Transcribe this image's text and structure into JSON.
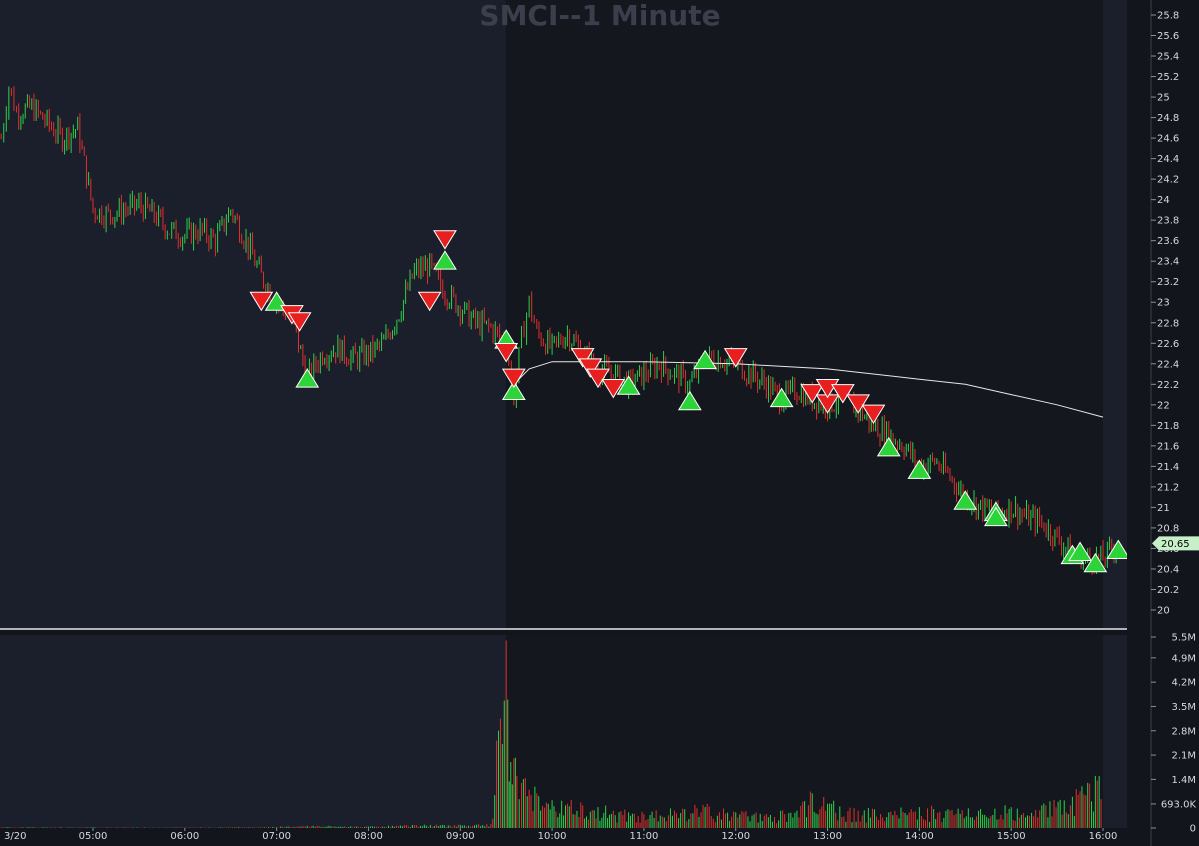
{
  "chart_data": [
    {
      "type": "candlestick",
      "title": "SMCI--1 Minute",
      "symbol": "SMCI",
      "interval": "1 Minute",
      "date_label": "3/20",
      "x_ticks": [
        "05:00",
        "06:00",
        "07:00",
        "08:00",
        "09:00",
        "10:00",
        "11:00",
        "12:00",
        "13:00",
        "14:00",
        "15:00",
        "16:00"
      ],
      "y_ticks": [
        "25.8",
        "25.6",
        "25.4",
        "25.2",
        "25",
        "24.8",
        "24.6",
        "24.4",
        "24.2",
        "24",
        "23.8",
        "23.6",
        "23.4",
        "23.2",
        "23",
        "22.8",
        "22.6",
        "22.4",
        "22.2",
        "22",
        "21.8",
        "21.6",
        "21.4",
        "21.2",
        "21",
        "20.8",
        "20.6",
        "20.4",
        "20.2",
        "20"
      ],
      "ylim": [
        19.9,
        26.0
      ],
      "last_price_label": "20.65",
      "last_price": 20.65,
      "price_path": [
        [
          "04:00",
          24.6
        ],
        [
          "04:05",
          25.1
        ],
        [
          "04:10",
          24.85
        ],
        [
          "04:20",
          24.9
        ],
        [
          "04:30",
          24.75
        ],
        [
          "04:40",
          24.6
        ],
        [
          "04:50",
          24.7
        ],
        [
          "05:00",
          23.9
        ],
        [
          "05:10",
          23.85
        ],
        [
          "05:20",
          23.9
        ],
        [
          "05:30",
          23.95
        ],
        [
          "05:40",
          23.85
        ],
        [
          "05:50",
          23.7
        ],
        [
          "06:00",
          23.65
        ],
        [
          "06:10",
          23.7
        ],
        [
          "06:20",
          23.6
        ],
        [
          "06:30",
          23.9
        ],
        [
          "06:40",
          23.6
        ],
        [
          "06:50",
          23.25
        ],
        [
          "07:00",
          23.0
        ],
        [
          "07:10",
          22.85
        ],
        [
          "07:20",
          22.25
        ],
        [
          "07:30",
          22.5
        ],
        [
          "07:40",
          22.55
        ],
        [
          "07:50",
          22.45
        ],
        [
          "08:00",
          22.5
        ],
        [
          "08:10",
          22.6
        ],
        [
          "08:20",
          22.9
        ],
        [
          "08:30",
          23.3
        ],
        [
          "08:40",
          23.35
        ],
        [
          "08:50",
          23.1
        ],
        [
          "09:00",
          22.95
        ],
        [
          "09:10",
          22.8
        ],
        [
          "09:20",
          22.75
        ],
        [
          "09:30",
          22.6
        ],
        [
          "09:35",
          22.1
        ],
        [
          "09:40",
          22.65
        ],
        [
          "09:45",
          23.0
        ],
        [
          "09:50",
          22.7
        ],
        [
          "10:00",
          22.55
        ],
        [
          "10:10",
          22.7
        ],
        [
          "10:20",
          22.5
        ],
        [
          "10:30",
          22.35
        ],
        [
          "10:40",
          22.3
        ],
        [
          "10:50",
          22.2
        ],
        [
          "11:00",
          22.3
        ],
        [
          "11:10",
          22.4
        ],
        [
          "11:20",
          22.3
        ],
        [
          "11:30",
          22.2
        ],
        [
          "11:40",
          22.45
        ],
        [
          "11:50",
          22.45
        ],
        [
          "12:00",
          22.4
        ],
        [
          "12:10",
          22.3
        ],
        [
          "12:20",
          22.2
        ],
        [
          "12:30",
          22.05
        ],
        [
          "12:40",
          22.15
        ],
        [
          "12:50",
          22.05
        ],
        [
          "13:00",
          22.0
        ],
        [
          "13:10",
          22.05
        ],
        [
          "13:20",
          21.95
        ],
        [
          "13:30",
          21.8
        ],
        [
          "13:40",
          21.7
        ],
        [
          "13:50",
          21.6
        ],
        [
          "14:00",
          21.4
        ],
        [
          "14:10",
          21.45
        ],
        [
          "14:20",
          21.3
        ],
        [
          "14:30",
          21.1
        ],
        [
          "14:40",
          21.0
        ],
        [
          "14:50",
          20.95
        ],
        [
          "15:00",
          21.0
        ],
        [
          "15:10",
          20.9
        ],
        [
          "15:20",
          20.85
        ],
        [
          "15:30",
          20.7
        ],
        [
          "15:40",
          20.55
        ],
        [
          "15:50",
          20.5
        ],
        [
          "16:00",
          20.5
        ],
        [
          "16:10",
          20.65
        ]
      ],
      "moving_average": [
        [
          "09:35",
          22.2
        ],
        [
          "09:45",
          22.35
        ],
        [
          "10:00",
          22.42
        ],
        [
          "11:00",
          22.42
        ],
        [
          "12:00",
          22.4
        ],
        [
          "13:00",
          22.35
        ],
        [
          "14:00",
          22.25
        ],
        [
          "14:30",
          22.2
        ],
        [
          "15:00",
          22.1
        ],
        [
          "15:30",
          22.0
        ],
        [
          "16:00",
          21.88
        ]
      ],
      "buy_signals": [
        [
          "07:00",
          23.02
        ],
        [
          "07:20",
          22.27
        ],
        [
          "08:50",
          23.42
        ],
        [
          "09:30",
          22.65
        ],
        [
          "09:35",
          22.15
        ],
        [
          "10:50",
          22.2
        ],
        [
          "11:30",
          22.05
        ],
        [
          "11:40",
          22.45
        ],
        [
          "12:30",
          22.08
        ],
        [
          "13:40",
          21.6
        ],
        [
          "14:00",
          21.38
        ],
        [
          "14:30",
          21.08
        ],
        [
          "14:50",
          20.97
        ],
        [
          "14:50",
          20.92
        ],
        [
          "15:40",
          20.55
        ],
        [
          "15:45",
          20.58
        ],
        [
          "15:55",
          20.47
        ],
        [
          "16:10",
          20.6
        ]
      ],
      "sell_signals": [
        [
          "06:50",
          23.0
        ],
        [
          "07:10",
          22.87
        ],
        [
          "07:15",
          22.8
        ],
        [
          "08:40",
          23.0
        ],
        [
          "08:50",
          23.6
        ],
        [
          "09:30",
          22.5
        ],
        [
          "09:35",
          22.25
        ],
        [
          "10:20",
          22.45
        ],
        [
          "10:25",
          22.35
        ],
        [
          "10:30",
          22.25
        ],
        [
          "10:40",
          22.15
        ],
        [
          "12:00",
          22.45
        ],
        [
          "12:50",
          22.1
        ],
        [
          "13:00",
          22.0
        ],
        [
          "13:00",
          22.15
        ],
        [
          "13:10",
          22.1
        ],
        [
          "13:20",
          22.0
        ],
        [
          "13:30",
          21.9
        ]
      ],
      "regular_session": [
        "09:30",
        "16:00"
      ]
    },
    {
      "type": "bar",
      "name": "volume",
      "y_ticks": [
        "5.5M",
        "4.9M",
        "4.2M",
        "3.5M",
        "2.8M",
        "2.1M",
        "1.4M",
        "693.0K",
        "0"
      ],
      "ylim": [
        0,
        5500000
      ],
      "bars": [
        [
          "04:00",
          20000
        ],
        [
          "05:00",
          15000
        ],
        [
          "06:00",
          12000
        ],
        [
          "07:00",
          30000
        ],
        [
          "07:20",
          60000
        ],
        [
          "08:00",
          40000
        ],
        [
          "08:30",
          80000
        ],
        [
          "09:00",
          90000
        ],
        [
          "09:20",
          120000
        ],
        [
          "09:30",
          5400000
        ],
        [
          "09:31",
          3700000
        ],
        [
          "09:33",
          1900000
        ],
        [
          "09:35",
          2000000
        ],
        [
          "09:37",
          1500000
        ],
        [
          "09:40",
          1300000
        ],
        [
          "09:45",
          1100000
        ],
        [
          "09:50",
          1000000
        ],
        [
          "10:00",
          800000
        ],
        [
          "10:10",
          700000
        ],
        [
          "10:20",
          650000
        ],
        [
          "10:30",
          600000
        ],
        [
          "10:40",
          500000
        ],
        [
          "10:50",
          450000
        ],
        [
          "11:00",
          400000
        ],
        [
          "11:20",
          500000
        ],
        [
          "11:40",
          600000
        ],
        [
          "12:00",
          450000
        ],
        [
          "12:20",
          400000
        ],
        [
          "12:40",
          500000
        ],
        [
          "12:50",
          1000000
        ],
        [
          "13:00",
          700000
        ],
        [
          "13:20",
          500000
        ],
        [
          "13:40",
          450000
        ],
        [
          "14:00",
          600000
        ],
        [
          "14:20",
          500000
        ],
        [
          "14:40",
          550000
        ],
        [
          "15:00",
          600000
        ],
        [
          "15:20",
          650000
        ],
        [
          "15:40",
          900000
        ],
        [
          "15:50",
          1300000
        ],
        [
          "15:55",
          1500000
        ],
        [
          "16:00",
          1800000
        ]
      ]
    }
  ],
  "colors": {
    "background": "#13151d",
    "panel_premarket": "#1b1f2b",
    "panel_regular": "#15171f",
    "up": "#2bd14a",
    "down": "#e0302c",
    "buy_marker": "#2cd43a",
    "sell_marker": "#e81f1f",
    "ma_line": "#e8e8e8",
    "separator": "#e8e8e8",
    "title": "#3b3f4b",
    "price_tag": "#c8f0c8"
  }
}
